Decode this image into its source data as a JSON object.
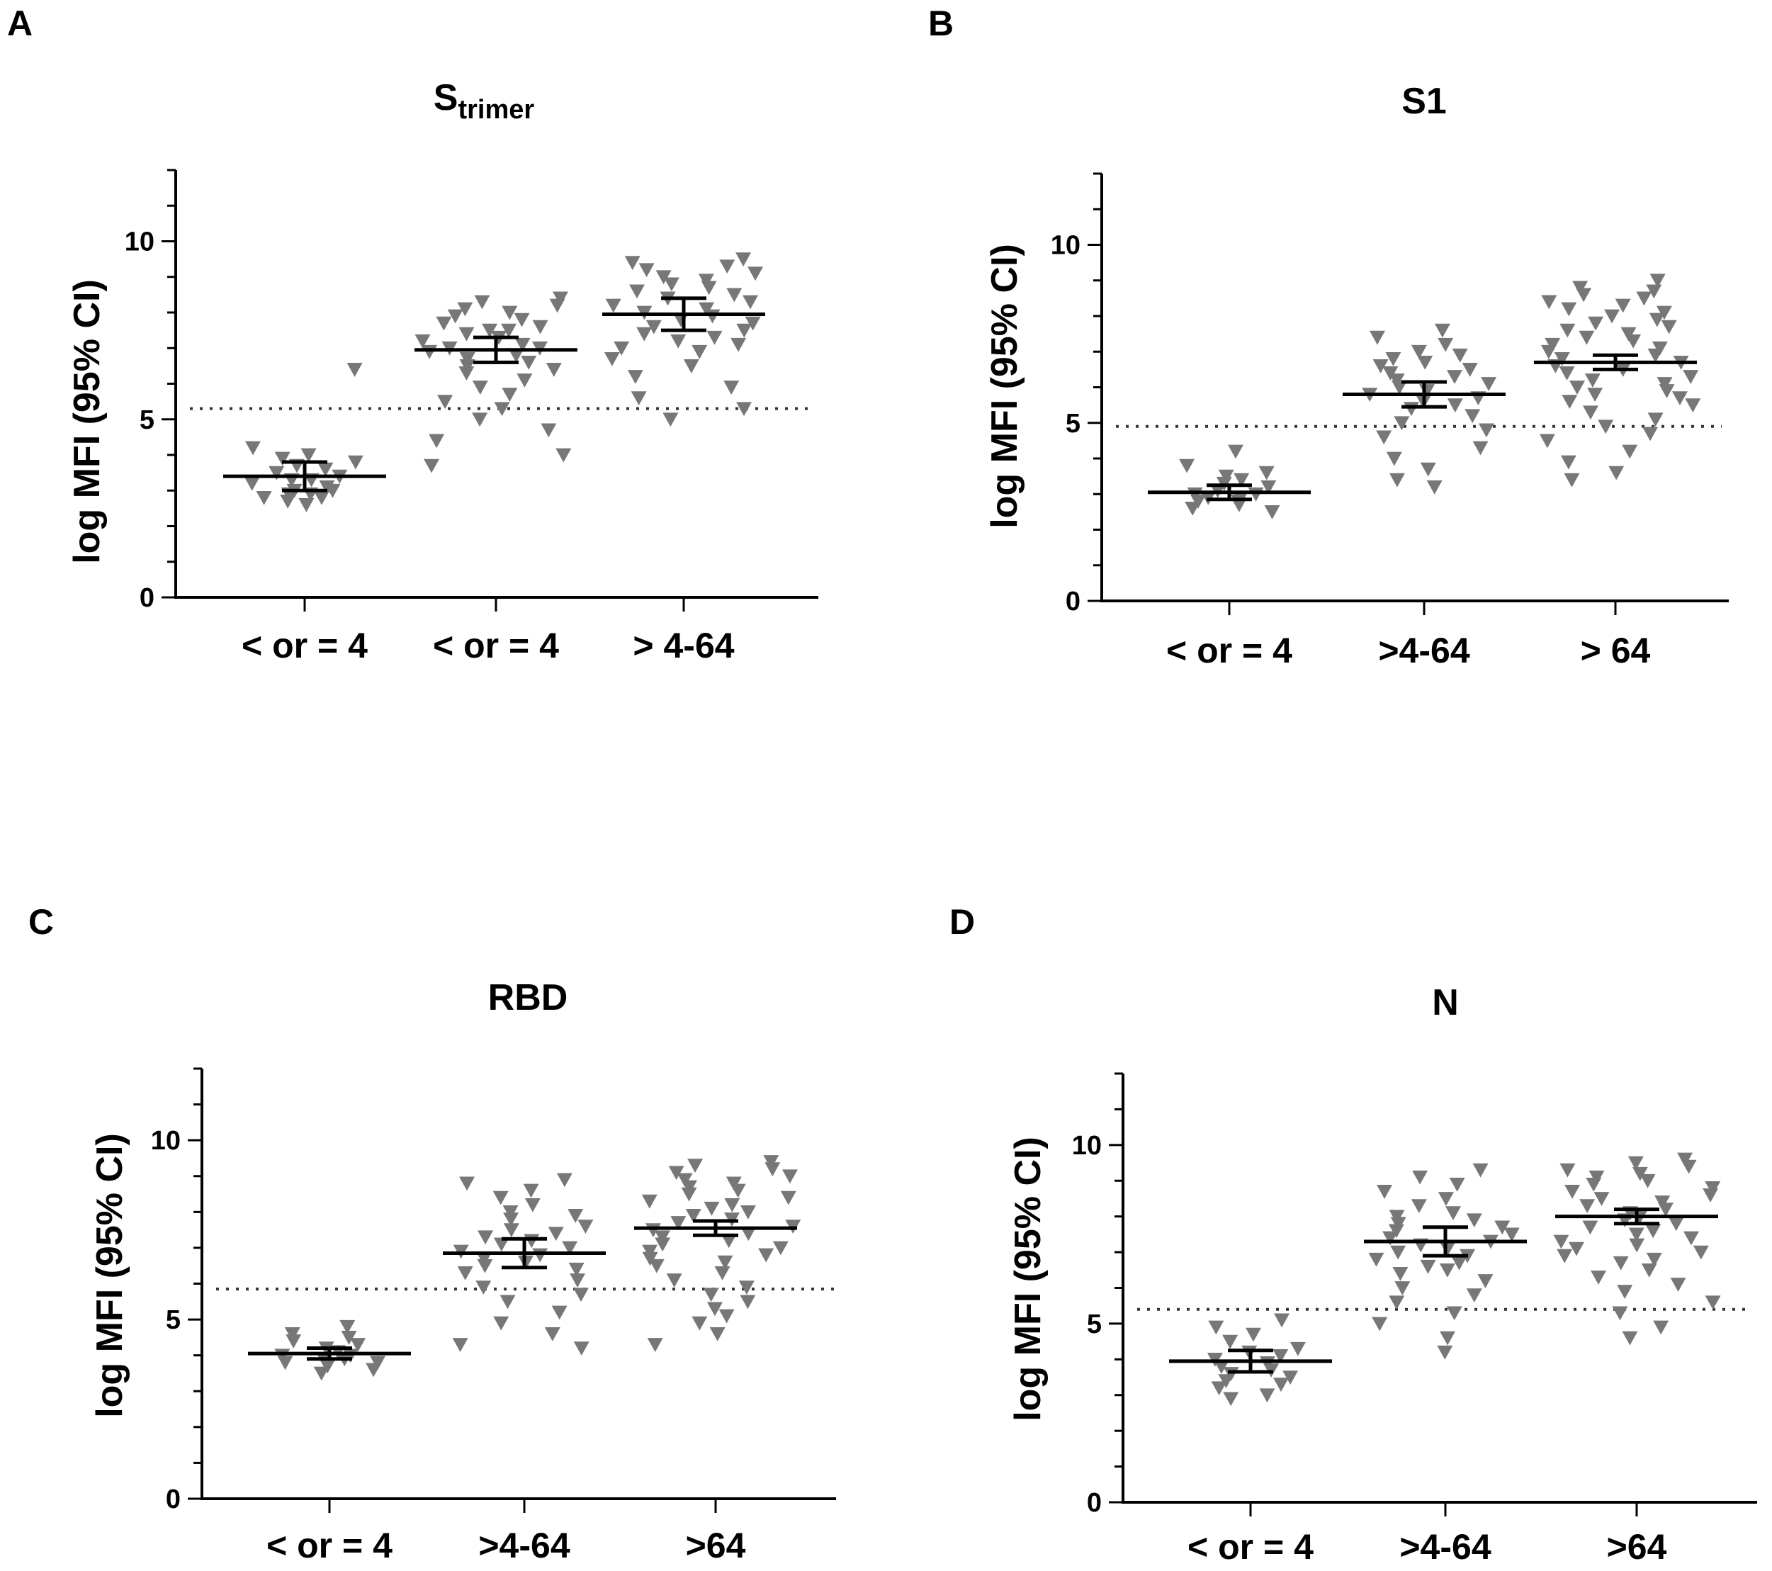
{
  "figure": {
    "y_axis_label": "log MFI (95% CI)"
  },
  "chart_data": [
    {
      "type": "scatter",
      "panel": "A",
      "title": "S",
      "title_subscript": "trimer",
      "xlabel": "",
      "ylabel": "log MFI (95% CI)",
      "ylim": [
        0,
        12
      ],
      "yticks": [
        "0",
        "5",
        "10"
      ],
      "categories": [
        "< or = 4",
        "< or = 4",
        "> 4-64"
      ],
      "cutoff": 5.3,
      "groups": [
        {
          "mean": 3.4,
          "ci": [
            3.0,
            3.8
          ],
          "values": [
            6.4,
            4.2,
            4.0,
            3.9,
            3.8,
            3.7,
            3.6,
            3.5,
            3.4,
            3.3,
            3.3,
            3.2,
            3.1,
            3.0,
            3.0,
            2.9,
            2.9,
            2.8,
            2.8,
            2.7,
            2.6
          ]
        },
        {
          "mean": 6.95,
          "ci": [
            6.6,
            7.3
          ],
          "values": [
            8.4,
            8.3,
            8.2,
            8.1,
            8.0,
            7.9,
            7.8,
            7.7,
            7.6,
            7.5,
            7.5,
            7.4,
            7.3,
            7.2,
            7.1,
            7.0,
            7.0,
            6.9,
            6.8,
            6.7,
            6.6,
            6.5,
            6.4,
            6.3,
            6.1,
            5.9,
            5.7,
            5.5,
            5.3,
            5.0,
            4.7,
            4.4,
            4.0,
            3.7
          ]
        },
        {
          "mean": 7.95,
          "ci": [
            7.5,
            8.4
          ],
          "values": [
            9.5,
            9.4,
            9.3,
            9.2,
            9.1,
            9.0,
            8.9,
            8.8,
            8.7,
            8.6,
            8.5,
            8.4,
            8.3,
            8.2,
            8.1,
            8.0,
            7.9,
            7.8,
            7.7,
            7.6,
            7.5,
            7.4,
            7.3,
            7.2,
            7.1,
            7.0,
            6.9,
            6.7,
            6.5,
            6.2,
            5.9,
            5.6,
            5.3,
            5.0
          ]
        }
      ]
    },
    {
      "type": "scatter",
      "panel": "B",
      "title": "S1",
      "title_subscript": "",
      "xlabel": "",
      "ylabel": "log MFI (95% CI)",
      "ylim": [
        0,
        12
      ],
      "yticks": [
        "0",
        "5",
        "10"
      ],
      "categories": [
        "< or = 4",
        ">4-64",
        "> 64"
      ],
      "cutoff": 4.9,
      "groups": [
        {
          "mean": 3.05,
          "ci": [
            2.85,
            3.25
          ],
          "values": [
            4.2,
            3.8,
            3.6,
            3.5,
            3.4,
            3.3,
            3.2,
            3.1,
            3.0,
            3.0,
            2.9,
            2.9,
            2.8,
            2.8,
            2.7,
            2.6,
            2.5
          ]
        },
        {
          "mean": 5.8,
          "ci": [
            5.45,
            6.15
          ],
          "values": [
            7.6,
            7.4,
            7.2,
            7.0,
            6.9,
            6.8,
            6.7,
            6.6,
            6.5,
            6.4,
            6.3,
            6.2,
            6.1,
            6.0,
            5.9,
            5.8,
            5.7,
            5.6,
            5.5,
            5.4,
            5.2,
            5.0,
            4.8,
            4.6,
            4.3,
            4.0,
            3.7,
            3.4,
            3.2
          ]
        },
        {
          "mean": 6.7,
          "ci": [
            6.5,
            6.9
          ],
          "values": [
            9.0,
            8.8,
            8.7,
            8.6,
            8.5,
            8.4,
            8.3,
            8.2,
            8.1,
            8.0,
            7.9,
            7.8,
            7.7,
            7.6,
            7.5,
            7.4,
            7.3,
            7.2,
            7.1,
            7.0,
            6.9,
            6.8,
            6.7,
            6.6,
            6.5,
            6.4,
            6.3,
            6.2,
            6.1,
            6.0,
            5.9,
            5.8,
            5.7,
            5.6,
            5.5,
            5.3,
            5.1,
            4.9,
            4.7,
            4.5,
            4.2,
            3.9,
            3.6,
            3.4
          ]
        }
      ]
    },
    {
      "type": "scatter",
      "panel": "C",
      "title": "RBD",
      "title_subscript": "",
      "xlabel": "",
      "ylabel": "log MFI (95% CI)",
      "ylim": [
        0,
        12
      ],
      "yticks": [
        "0",
        "5",
        "10"
      ],
      "categories": [
        "< or = 4",
        ">4-64",
        ">64"
      ],
      "cutoff": 5.85,
      "groups": [
        {
          "mean": 4.05,
          "ci": [
            3.9,
            4.2
          ],
          "values": [
            4.8,
            4.6,
            4.5,
            4.4,
            4.3,
            4.2,
            4.1,
            4.0,
            4.0,
            3.9,
            3.9,
            3.8,
            3.8,
            3.7,
            3.6,
            3.5
          ]
        },
        {
          "mean": 6.85,
          "ci": [
            6.45,
            7.25
          ],
          "values": [
            8.9,
            8.8,
            8.6,
            8.4,
            8.2,
            8.0,
            7.9,
            7.8,
            7.6,
            7.5,
            7.4,
            7.3,
            7.2,
            7.1,
            7.0,
            6.9,
            6.8,
            6.7,
            6.6,
            6.5,
            6.4,
            6.3,
            6.1,
            5.9,
            5.7,
            5.5,
            5.2,
            4.9,
            4.6,
            4.3,
            4.2
          ]
        },
        {
          "mean": 7.55,
          "ci": [
            7.35,
            7.75
          ],
          "values": [
            9.4,
            9.3,
            9.2,
            9.1,
            9.0,
            8.9,
            8.8,
            8.7,
            8.6,
            8.5,
            8.4,
            8.3,
            8.2,
            8.1,
            8.0,
            7.9,
            7.8,
            7.7,
            7.6,
            7.5,
            7.4,
            7.3,
            7.2,
            7.1,
            7.0,
            6.9,
            6.8,
            6.7,
            6.6,
            6.5,
            6.3,
            6.1,
            5.9,
            5.7,
            5.5,
            5.3,
            5.1,
            4.9,
            4.6,
            4.3
          ]
        }
      ]
    },
    {
      "type": "scatter",
      "panel": "D",
      "title": "N",
      "title_subscript": "",
      "xlabel": "",
      "ylabel": "log MFI (95% CI)",
      "ylim": [
        0,
        12
      ],
      "yticks": [
        "0",
        "5",
        "10"
      ],
      "categories": [
        "< or = 4",
        ">4-64",
        ">64"
      ],
      "cutoff": 5.4,
      "groups": [
        {
          "mean": 3.95,
          "ci": [
            3.65,
            4.25
          ],
          "values": [
            5.1,
            4.9,
            4.7,
            4.5,
            4.3,
            4.2,
            4.1,
            4.0,
            3.9,
            3.8,
            3.7,
            3.6,
            3.5,
            3.4,
            3.3,
            3.2,
            3.0,
            2.9
          ]
        },
        {
          "mean": 7.3,
          "ci": [
            6.9,
            7.7
          ],
          "values": [
            9.3,
            9.1,
            8.9,
            8.7,
            8.5,
            8.3,
            8.1,
            8.0,
            7.9,
            7.8,
            7.7,
            7.6,
            7.5,
            7.4,
            7.3,
            7.2,
            7.1,
            7.0,
            6.9,
            6.8,
            6.7,
            6.6,
            6.5,
            6.4,
            6.2,
            6.0,
            5.8,
            5.6,
            5.3,
            5.0,
            4.6,
            4.2
          ]
        },
        {
          "mean": 8.0,
          "ci": [
            7.8,
            8.2
          ],
          "values": [
            9.6,
            9.5,
            9.4,
            9.3,
            9.2,
            9.1,
            9.0,
            8.9,
            8.8,
            8.7,
            8.6,
            8.5,
            8.4,
            8.3,
            8.2,
            8.1,
            8.0,
            7.9,
            7.8,
            7.7,
            7.6,
            7.5,
            7.4,
            7.3,
            7.2,
            7.1,
            7.0,
            6.9,
            6.8,
            6.7,
            6.5,
            6.3,
            6.1,
            5.9,
            5.6,
            5.3,
            4.9,
            4.6
          ]
        }
      ]
    }
  ]
}
